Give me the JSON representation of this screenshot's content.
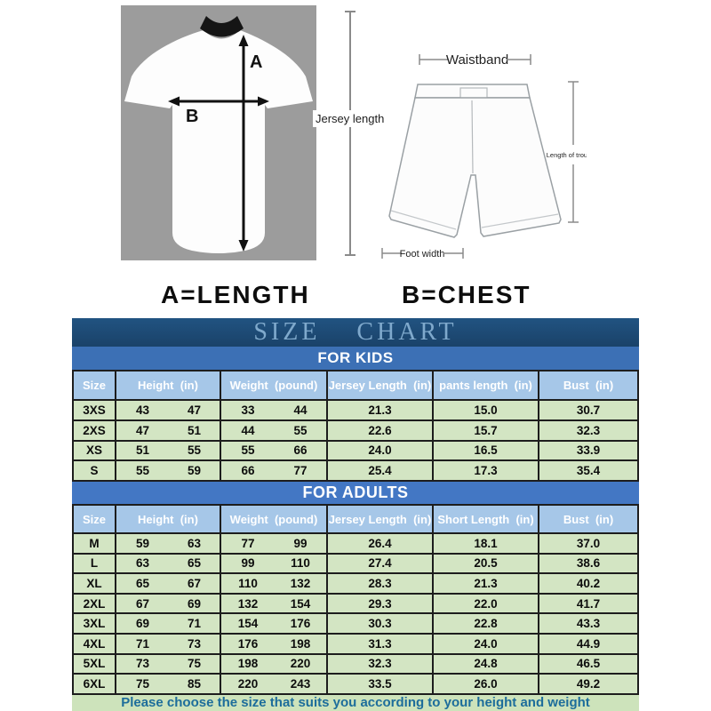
{
  "figures": {
    "jersey": {
      "arrow_a_label": "A",
      "arrow_b_label": "B",
      "length_label": "Jersey length"
    },
    "shorts": {
      "waistband_label": "Waistband",
      "length_label": "Length of trousers",
      "foot_width_label": "Foot width"
    }
  },
  "legend": {
    "a_equals": "A=LENGTH",
    "b_equals": "B=CHEST"
  },
  "size_chart": {
    "title": "SIZE CHART",
    "sections": [
      {
        "name": "FOR KIDS",
        "headers": [
          {
            "label": "Size",
            "span": 1
          },
          {
            "label": "Height  (in)",
            "span": 2
          },
          {
            "label": "Weight  (pound)",
            "span": 2
          },
          {
            "label": "Jersey Length  (in)",
            "span": 1
          },
          {
            "label": "pants length  (in)",
            "span": 1
          },
          {
            "label": "Bust  (in)",
            "span": 1
          }
        ],
        "rows": [
          [
            "3XS",
            "43",
            "47",
            "33",
            "44",
            "21.3",
            "15.0",
            "30.7"
          ],
          [
            "2XS",
            "47",
            "51",
            "44",
            "55",
            "22.6",
            "15.7",
            "32.3"
          ],
          [
            "XS",
            "51",
            "55",
            "55",
            "66",
            "24.0",
            "16.5",
            "33.9"
          ],
          [
            "S",
            "55",
            "59",
            "66",
            "77",
            "25.4",
            "17.3",
            "35.4"
          ]
        ]
      },
      {
        "name": "FOR ADULTS",
        "headers": [
          {
            "label": "Size",
            "span": 1
          },
          {
            "label": "Height  (in)",
            "span": 2
          },
          {
            "label": "Weight  (pound)",
            "span": 2
          },
          {
            "label": "Jersey Length  (in)",
            "span": 1
          },
          {
            "label": "Short Length  (in)",
            "span": 1
          },
          {
            "label": "Bust  (in)",
            "span": 1
          }
        ],
        "rows": [
          [
            "M",
            "59",
            "63",
            "77",
            "99",
            "26.4",
            "18.1",
            "37.0"
          ],
          [
            "L",
            "63",
            "65",
            "99",
            "110",
            "27.4",
            "20.5",
            "38.6"
          ],
          [
            "XL",
            "65",
            "67",
            "110",
            "132",
            "28.3",
            "21.3",
            "40.2"
          ],
          [
            "2XL",
            "67",
            "69",
            "132",
            "154",
            "29.3",
            "22.0",
            "41.7"
          ],
          [
            "3XL",
            "69",
            "71",
            "154",
            "176",
            "30.3",
            "22.8",
            "43.3"
          ],
          [
            "4XL",
            "71",
            "73",
            "176",
            "198",
            "31.3",
            "24.0",
            "44.9"
          ],
          [
            "5XL",
            "73",
            "75",
            "198",
            "220",
            "32.3",
            "24.8",
            "46.5"
          ],
          [
            "6XL",
            "75",
            "85",
            "220",
            "243",
            "33.5",
            "26.0",
            "49.2"
          ]
        ]
      }
    ]
  },
  "footer": {
    "note": "Please choose the size that suits you according to your height and weight"
  },
  "colors": {
    "title_bar": "#1c4870",
    "title_text": "#7fa9cc",
    "kids_bar": "#3c70b5",
    "adults_bar": "#4377c4",
    "header_bg": "#a6c7e8",
    "row_bg": "#d3e5c3",
    "border": "#1d1d1d",
    "footer_bg": "#cde3bb",
    "footer_text": "#1d6d9b",
    "jersey_backdrop": "#9c9c9c"
  }
}
